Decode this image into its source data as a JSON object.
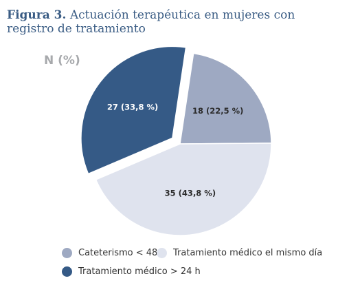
{
  "title": {
    "label": "Figura 3.",
    "text": "Actuación terapéutica en mujeres con registro de tratamiento"
  },
  "n_label": "N (%)",
  "chart_data": {
    "type": "pie",
    "slices": [
      {
        "category": "Cateterismo < 48 h",
        "value": 18,
        "label": "18 (22,5 %)",
        "color": "#9ea9c2",
        "exploded": false
      },
      {
        "category": "Tratamiento médico el mismo día",
        "value": 35,
        "label": "35 (43,8 %)",
        "color": "#dfe3ee",
        "exploded": false
      },
      {
        "category": "Tratamiento médico > 24 h",
        "value": 27,
        "label": "27 (33,8 %)",
        "color": "#355a86",
        "exploded": true
      }
    ],
    "legend_position": "bottom-left"
  }
}
